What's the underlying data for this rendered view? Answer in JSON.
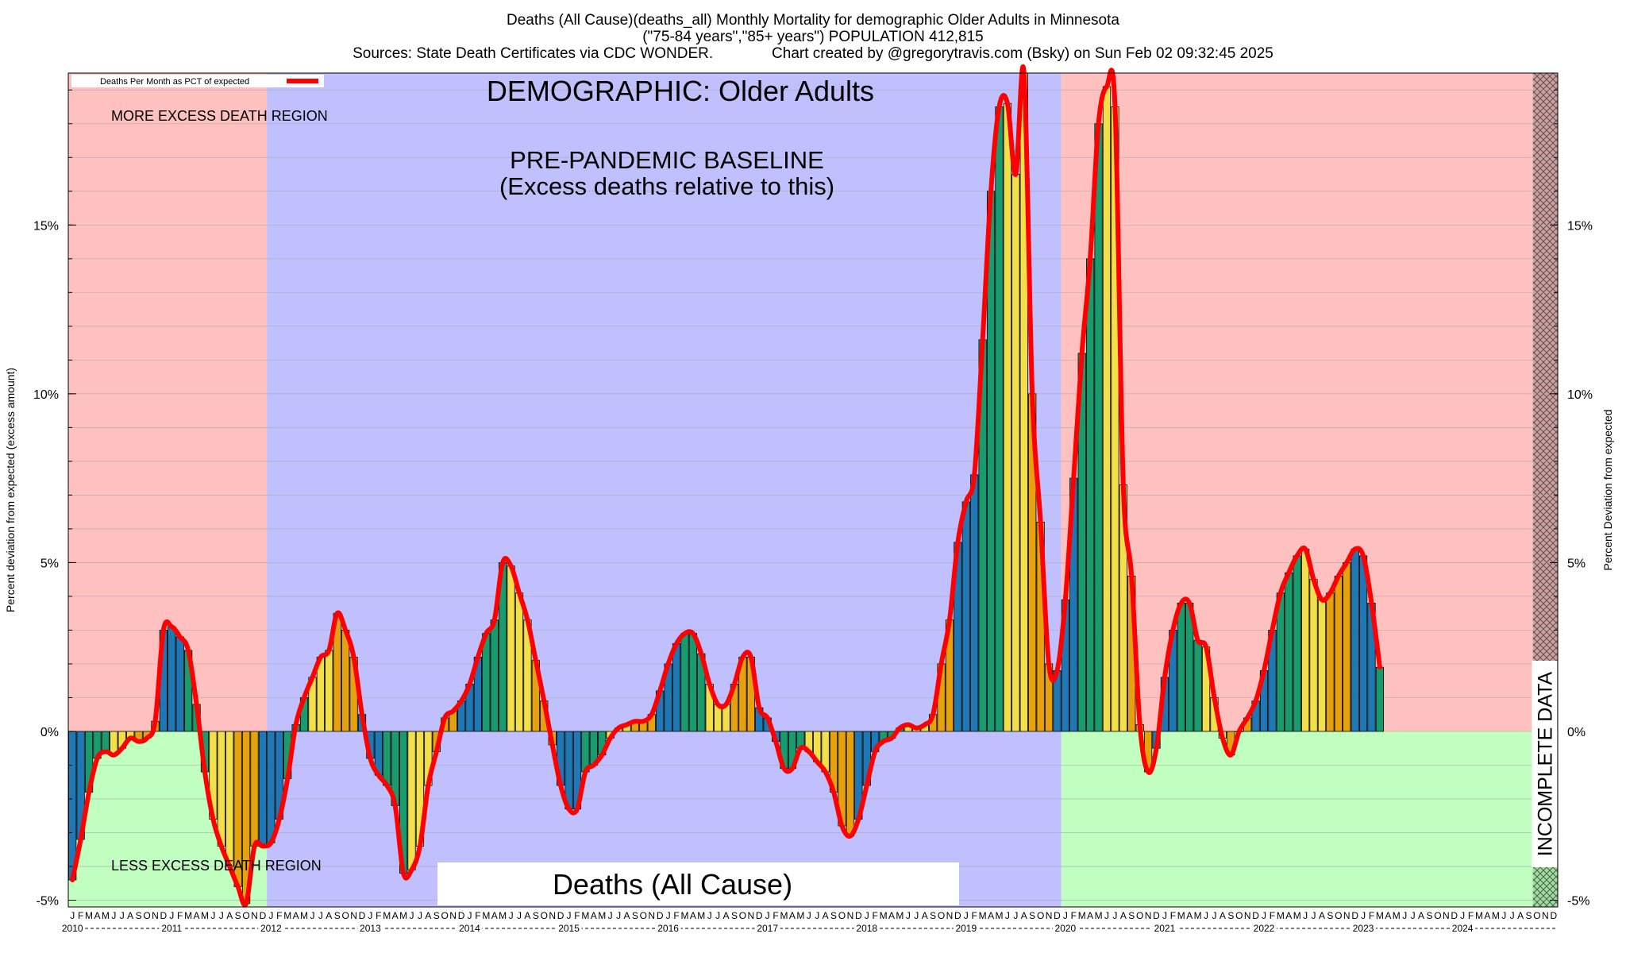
{
  "header": {
    "line1": "Deaths (All Cause)(deaths_all) Monthly Mortality for demographic Older Adults in Minnesota",
    "line2": "(\"75-84 years\",\"85+ years\") POPULATION 412,815",
    "line3": "Sources: State Death Certificates via CDC WONDER.              Chart created by @gregorytravis.com (Bsky) on Sun Feb 02 09:32:45 2025"
  },
  "chart_data": {
    "type": "bar",
    "title": "Deaths (All Cause)(deaths_all) Monthly Mortality for demographic Older Adults in Minnesota",
    "ylabel_left": "Percent deviation from expected (excess amount)",
    "ylabel_right": "Percent Deviation from expected",
    "ylim": [
      -5.2,
      19.5
    ],
    "yticks": [
      "-5%",
      "0%",
      "5%",
      "10%",
      "15%"
    ],
    "ytick_values": [
      -5,
      0,
      5,
      10,
      15
    ],
    "legend": {
      "label": "Deaths Per Month as PCT of expected",
      "color": "#ff0000",
      "placement": "top-left"
    },
    "month_labels": [
      "J",
      "F",
      "M",
      "A",
      "M",
      "J",
      "J",
      "A",
      "S",
      "O",
      "N",
      "D"
    ],
    "years": [
      "2010",
      "2011",
      "2012",
      "2013",
      "2014",
      "2015",
      "2016",
      "2017",
      "2018",
      "2019",
      "2020",
      "2021",
      "2022",
      "2023",
      "2024"
    ],
    "season_colors": [
      "#1f77b4",
      "#1a9b6e",
      "#f2df4a",
      "#e6a10f"
    ],
    "regions": {
      "pre_pandemic_start": "2012-01",
      "pre_pandemic_end": "2019-12",
      "incomplete_start": "2024-10",
      "excess_color": "#ffc0c0",
      "less_color": "#c0ffc0",
      "baseline_color": "#c0c0ff"
    },
    "series": [
      {
        "name": "Deaths Per Month as PCT of expected",
        "start": "2010-01",
        "values": [
          -4.4,
          -3.2,
          -1.8,
          -0.8,
          -0.6,
          -0.7,
          -0.5,
          -0.2,
          -0.3,
          -0.2,
          0.3,
          3.0,
          3.1,
          2.8,
          2.4,
          0.8,
          -1.2,
          -2.6,
          -3.4,
          -4.0,
          -4.6,
          -5.1,
          -3.4,
          -3.4,
          -3.3,
          -2.6,
          -1.4,
          0.2,
          1.0,
          1.6,
          2.2,
          2.4,
          3.5,
          3.0,
          2.2,
          0.5,
          -0.8,
          -1.3,
          -1.6,
          -2.2,
          -4.2,
          -4.1,
          -3.4,
          -1.6,
          -0.6,
          0.4,
          0.6,
          0.9,
          1.4,
          2.2,
          2.9,
          3.3,
          5.0,
          4.9,
          4.1,
          3.3,
          2.1,
          0.9,
          -0.4,
          -1.6,
          -2.3,
          -2.3,
          -1.2,
          -1.0,
          -0.7,
          -0.2,
          0.1,
          0.2,
          0.3,
          0.3,
          0.5,
          1.2,
          2.0,
          2.6,
          2.9,
          2.9,
          2.3,
          1.4,
          0.8,
          0.8,
          1.4,
          2.2,
          2.2,
          0.7,
          0.4,
          -0.3,
          -1.1,
          -1.1,
          -0.5,
          -0.6,
          -0.9,
          -1.2,
          -1.8,
          -2.8,
          -3.1,
          -2.6,
          -1.6,
          -0.6,
          -0.3,
          -0.2,
          0.1,
          0.2,
          0.1,
          0.2,
          0.5,
          2.0,
          3.3,
          5.6,
          6.8,
          7.6,
          11.6,
          16.0,
          18.5,
          18.6,
          16.5,
          19.5,
          10.0,
          6.2,
          2.0,
          1.8,
          3.9,
          7.5,
          11.2,
          14.0,
          18.0,
          19.1,
          18.5,
          7.3,
          4.6,
          0.2,
          -1.2,
          -0.5,
          1.6,
          3.0,
          3.8,
          3.8,
          2.7,
          2.5,
          1.0,
          -0.2,
          -0.7,
          0.0,
          0.4,
          0.9,
          1.8,
          3.0,
          4.1,
          4.7,
          5.2,
          5.4,
          4.5,
          3.9,
          4.1,
          4.6,
          5.0,
          5.4,
          5.2,
          3.8,
          1.9
        ]
      }
    ]
  },
  "annotations": {
    "more_excess": "MORE EXCESS DEATH REGION",
    "less_excess": "LESS EXCESS DEATH REGION",
    "demographic": "DEMOGRAPHIC: Older Adults",
    "baseline_line1": "PRE-PANDEMIC BASELINE",
    "baseline_line2": "(Excess deaths relative to this)",
    "metric_box": "Deaths (All Cause)",
    "incomplete": "INCOMPLETE DATA"
  }
}
